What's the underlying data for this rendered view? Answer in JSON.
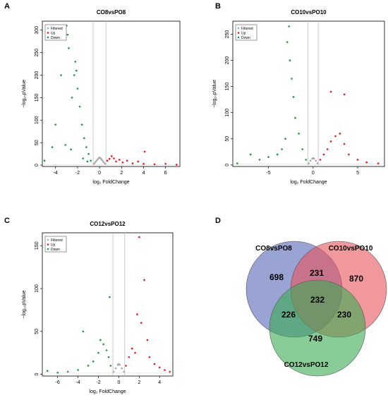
{
  "chart_data": [
    {
      "type": "scatter",
      "panel": "A",
      "title": "CO8vsPO8",
      "xlabel": "log₂ FoldChange",
      "ylabel": "−log₁₀pValue",
      "xlim": [
        -5.2,
        7.3
      ],
      "ylim": [
        -3,
        320
      ],
      "xticks": [
        -4,
        -2,
        0,
        2,
        4,
        6
      ],
      "yticks": [
        0,
        50,
        100,
        150,
        200,
        250,
        300
      ],
      "threshold_x": [
        -0.58,
        0.58
      ],
      "legend": {
        "entries": [
          "Filtered",
          "Up",
          "Down"
        ],
        "position": "top-left"
      },
      "series": [
        {
          "name": "Filtered",
          "color": "#a6a6a6",
          "points": [
            [
              -0.5,
              3
            ],
            [
              -0.4,
              6
            ],
            [
              -0.3,
              9
            ],
            [
              -0.2,
              12
            ],
            [
              -0.1,
              15
            ],
            [
              0,
              17
            ],
            [
              0.1,
              15
            ],
            [
              0.2,
              12
            ],
            [
              0.3,
              9
            ],
            [
              0.4,
              6
            ],
            [
              0.5,
              3
            ]
          ]
        },
        {
          "name": "Up",
          "color": "#e31a1c",
          "points": [
            [
              0.7,
              10
            ],
            [
              0.9,
              14
            ],
            [
              1.1,
              20
            ],
            [
              1.3,
              15
            ],
            [
              1.5,
              8
            ],
            [
              1.8,
              12
            ],
            [
              2.1,
              6
            ],
            [
              2.5,
              10
            ],
            [
              3,
              4
            ],
            [
              3.5,
              8
            ],
            [
              4,
              3
            ],
            [
              4.1,
              30
            ],
            [
              5,
              2
            ],
            [
              6,
              3
            ],
            [
              7,
              1
            ]
          ]
        },
        {
          "name": "Down",
          "color": "#1a9641",
          "points": [
            [
              -0.8,
              10
            ],
            [
              -1,
              25
            ],
            [
              -1.2,
              40
            ],
            [
              -1.4,
              60
            ],
            [
              -1.6,
              90
            ],
            [
              -1.8,
              130
            ],
            [
              -2,
              170
            ],
            [
              -2.1,
              210
            ],
            [
              -2.2,
              230
            ],
            [
              -2.3,
              200
            ],
            [
              -2.5,
              150
            ],
            [
              -2.8,
              260
            ],
            [
              -2.9,
              290
            ],
            [
              -3,
              310
            ],
            [
              -3.2,
              280
            ],
            [
              -3.5,
              200
            ],
            [
              -4,
              90
            ],
            [
              -4.3,
              40
            ],
            [
              -5,
              10
            ],
            [
              -3.1,
              45
            ],
            [
              -2.6,
              35
            ],
            [
              -1.5,
              15
            ],
            [
              -1.1,
              8
            ]
          ]
        }
      ]
    },
    {
      "type": "scatter",
      "panel": "B",
      "title": "CO10vsPO10",
      "xlabel": "log₂ FoldChange",
      "ylabel": "−log₁₀pValue",
      "xlim": [
        -9,
        8
      ],
      "ylim": [
        -3,
        275
      ],
      "xticks": [
        -5,
        0,
        5
      ],
      "yticks": [
        0,
        50,
        100,
        150,
        200,
        250
      ],
      "threshold_x": [
        -0.58,
        0.58
      ],
      "legend": {
        "entries": [
          "Filtered",
          "Up",
          "Down"
        ],
        "position": "top-left"
      },
      "series": [
        {
          "name": "Filtered",
          "color": "#a6a6a6",
          "points": [
            [
              -0.5,
              3
            ],
            [
              -0.3,
              8
            ],
            [
              -0.1,
              12
            ],
            [
              0,
              13
            ],
            [
              0.1,
              12
            ],
            [
              0.3,
              8
            ],
            [
              0.5,
              3
            ]
          ]
        },
        {
          "name": "Up",
          "color": "#e31a1c",
          "points": [
            [
              0.8,
              10
            ],
            [
              1.2,
              20
            ],
            [
              1.6,
              30
            ],
            [
              2,
              45
            ],
            [
              2.5,
              55
            ],
            [
              3,
              60
            ],
            [
              3.5,
              40
            ],
            [
              4,
              20
            ],
            [
              5,
              10
            ],
            [
              6,
              5
            ],
            [
              7.3,
              3
            ],
            [
              2,
              140
            ],
            [
              3.5,
              135
            ]
          ]
        },
        {
          "name": "Down",
          "color": "#1a9641",
          "points": [
            [
              -0.8,
              10
            ],
            [
              -1.2,
              30
            ],
            [
              -1.6,
              60
            ],
            [
              -2,
              90
            ],
            [
              -2.2,
              130
            ],
            [
              -2.4,
              165
            ],
            [
              -2.6,
              200
            ],
            [
              -2.7,
              265
            ],
            [
              -2.9,
              235
            ],
            [
              -3.1,
              50
            ],
            [
              -3.5,
              30
            ],
            [
              -4,
              20
            ],
            [
              -5,
              15
            ],
            [
              -6,
              10
            ],
            [
              -7,
              20
            ],
            [
              -8.5,
              3
            ]
          ]
        }
      ]
    },
    {
      "type": "scatter",
      "panel": "C",
      "title": "CO12vsPO12",
      "xlabel": "log₂ FoldChange",
      "ylabel": "−log₁₀pValue",
      "xlim": [
        -7.5,
        5.3
      ],
      "ylim": [
        -2,
        165
      ],
      "xticks": [
        -6,
        -4,
        -2,
        0,
        2,
        4
      ],
      "yticks": [
        0,
        50,
        100,
        150
      ],
      "threshold_x": [
        -0.58,
        0.58
      ],
      "legend": {
        "entries": [
          "Filtered",
          "Up",
          "Down"
        ],
        "position": "top-left"
      },
      "series": [
        {
          "name": "Filtered",
          "color": "#a6a6a6",
          "points": [
            [
              -0.5,
              3
            ],
            [
              -0.3,
              7
            ],
            [
              -0.1,
              11
            ],
            [
              0,
              12
            ],
            [
              0.1,
              11
            ],
            [
              0.3,
              7
            ],
            [
              0.5,
              3
            ]
          ]
        },
        {
          "name": "Up",
          "color": "#e31a1c",
          "points": [
            [
              0.7,
              10
            ],
            [
              1,
              20
            ],
            [
              1.3,
              30
            ],
            [
              1.6,
              25
            ],
            [
              2,
              160
            ],
            [
              2.2,
              60
            ],
            [
              2.5,
              110
            ],
            [
              2.8,
              40
            ],
            [
              3,
              20
            ],
            [
              3.5,
              12
            ],
            [
              4,
              8
            ],
            [
              4.5,
              5
            ],
            [
              5,
              3
            ],
            [
              1.8,
              70
            ]
          ]
        },
        {
          "name": "Down",
          "color": "#1a9641",
          "points": [
            [
              -0.8,
              10
            ],
            [
              -1,
              20
            ],
            [
              -1.2,
              28
            ],
            [
              -1.5,
              35
            ],
            [
              -1.8,
              40
            ],
            [
              -2,
              25
            ],
            [
              -2.5,
              15
            ],
            [
              -3,
              10
            ],
            [
              -3.5,
              50
            ],
            [
              -4,
              5
            ],
            [
              -5,
              3
            ],
            [
              -6,
              2
            ],
            [
              -7,
              4
            ],
            [
              -0.9,
              90
            ]
          ]
        }
      ]
    },
    {
      "type": "venn",
      "panel": "D",
      "sets": [
        {
          "name": "CO8vsPO8",
          "color": "#5566b8"
        },
        {
          "name": "CO10vsPO10",
          "color": "#e8545a"
        },
        {
          "name": "CO12vsPO12",
          "color": "#3aaa52"
        }
      ],
      "regions": {
        "only_CO8vsPO8": 698,
        "only_CO10vsPO10": 870,
        "only_CO12vsPO12": 749,
        "CO8vsPO8_CO10vsPO10": 231,
        "CO8vsPO8_CO12vsPO12": 226,
        "CO10vsPO10_CO12vsPO12": 230,
        "all_three": 232
      }
    }
  ]
}
